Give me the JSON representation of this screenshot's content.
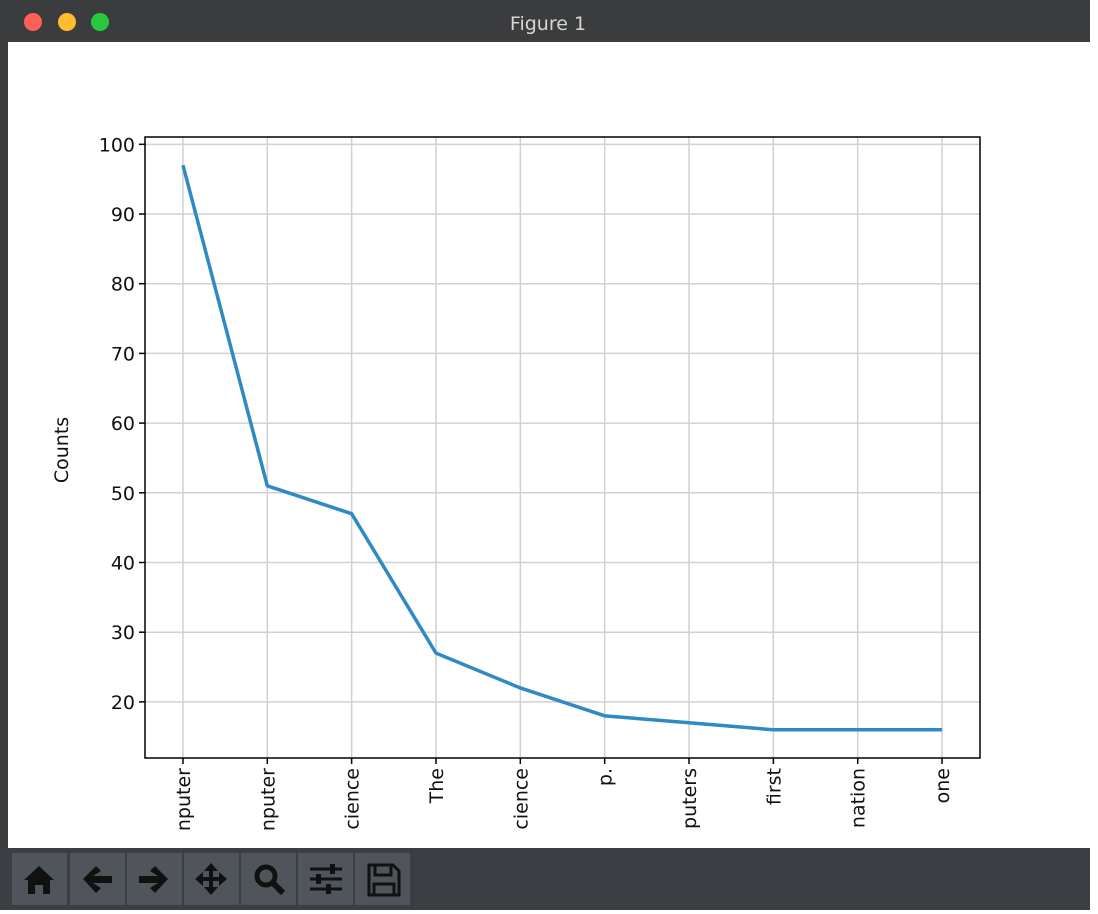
{
  "window": {
    "title": "Figure 1"
  },
  "chart_data": {
    "type": "line",
    "y_label": "Counts",
    "categories": [
      "nputer",
      "nputer",
      "cience",
      "The",
      "cience",
      "p.",
      "puters",
      "first",
      "nation",
      "one"
    ],
    "series": [
      {
        "color": "#2f8ac4",
        "values": [
          97,
          51,
          47,
          27,
          22,
          18,
          17,
          16,
          16,
          16
        ]
      }
    ],
    "ylim": [
      11.95,
      101.05
    ],
    "yticks": [
      20,
      30,
      40,
      50,
      60,
      70,
      80,
      90,
      100
    ],
    "grid": true
  }
}
